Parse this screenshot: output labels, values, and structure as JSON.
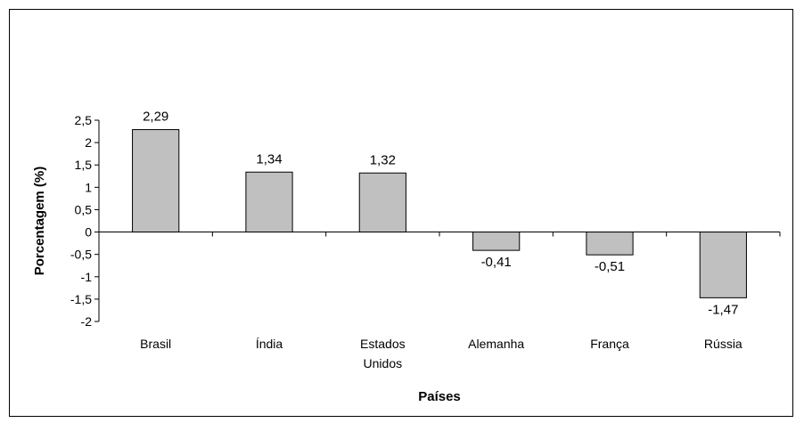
{
  "chart_data": {
    "type": "bar",
    "categories": [
      "Brasil",
      "Índia",
      "Estados Unidos",
      "Alemanha",
      "França",
      "Rússia"
    ],
    "category_lines": [
      [
        "Brasil"
      ],
      [
        "Índia"
      ],
      [
        "Estados",
        "Unidos"
      ],
      [
        "Alemanha"
      ],
      [
        "França"
      ],
      [
        "Rússia"
      ]
    ],
    "values": [
      2.29,
      1.34,
      1.32,
      -0.41,
      -0.51,
      -1.47
    ],
    "data_labels": [
      "2,29",
      "1,34",
      "1,32",
      "-0,41",
      "-0,51",
      "-1,47"
    ],
    "y_ticks": [
      2.5,
      2,
      1.5,
      1,
      0.5,
      0,
      -0.5,
      -1,
      -1.5,
      -2
    ],
    "y_tick_labels": [
      "2,5",
      "2",
      "1,5",
      "1",
      "0,5",
      "0",
      "-0,5",
      "-1",
      "-1,5",
      "-2"
    ],
    "ylim": [
      -2,
      2.5
    ],
    "xlabel": "Países",
    "ylabel": "Porcentagem (%)",
    "grid": false,
    "legend": "none",
    "bar_color": "#c0c0c0",
    "bar_stroke": "#000000"
  }
}
